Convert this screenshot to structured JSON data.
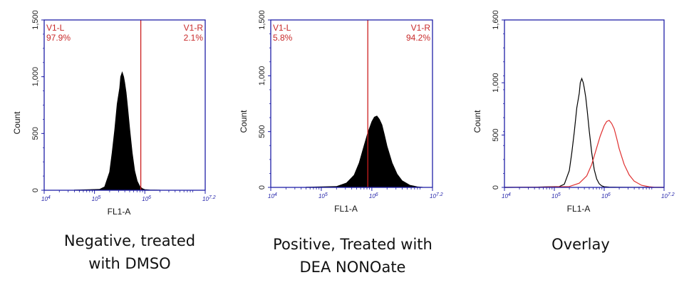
{
  "colors": {
    "frame": "#1f1fa8",
    "gate": "#cc1f1f",
    "gate_text": "#c82a2a",
    "histogram_fill": "#000000",
    "overlay_negative": "#000000",
    "overlay_positive": "#e03030"
  },
  "panels": [
    {
      "caption_lines": [
        "Negative, treated",
        "with DMSO"
      ],
      "gate_left": {
        "name": "V1-L",
        "percent": "97.9%"
      },
      "gate_right": {
        "name": "V1-R",
        "percent": "2.1%"
      }
    },
    {
      "caption_lines": [
        "Positive, Treated with",
        "DEA NONOate"
      ],
      "gate_left": {
        "name": "V1-L",
        "percent": "5.8%"
      },
      "gate_right": {
        "name": "V1-R",
        "percent": "94.2%"
      }
    },
    {
      "caption_lines": [
        "Overlay"
      ]
    }
  ],
  "chart_data": [
    {
      "type": "histogram",
      "style": "filled",
      "xlabel": "FL1-A",
      "ylabel": "Count",
      "x_scale": "log10",
      "xlim": [
        4,
        7.2
      ],
      "x_ticks": [
        {
          "value": 4,
          "label": "10^4"
        },
        {
          "value": 5,
          "label": "10^5"
        },
        {
          "value": 6,
          "label": "10^6"
        },
        {
          "value": 7.2,
          "label": "10^7.2"
        }
      ],
      "ylim": [
        0,
        1500
      ],
      "y_ticks": [
        {
          "value": 0,
          "label": "0"
        },
        {
          "value": 500,
          "label": "500"
        },
        {
          "value": 1000,
          "label": "1,000"
        },
        {
          "value": 1500,
          "label": "1,500"
        }
      ],
      "gate_boundary": 5.92,
      "gates": [
        {
          "name": "V1-L",
          "percent": 97.9
        },
        {
          "name": "V1-R",
          "percent": 2.1
        }
      ],
      "series": [
        {
          "x": [
            4.6,
            5.1,
            5.2,
            5.3,
            5.35,
            5.4,
            5.45,
            5.5,
            5.52,
            5.55,
            5.58,
            5.6,
            5.63,
            5.66,
            5.7,
            5.75,
            5.8,
            5.85,
            5.9,
            5.95,
            6.0,
            6.1,
            6.3
          ],
          "y": [
            2,
            8,
            30,
            160,
            330,
            530,
            760,
            900,
            1000,
            1040,
            1000,
            950,
            860,
            730,
            540,
            330,
            170,
            80,
            35,
            15,
            6,
            3,
            1
          ]
        }
      ]
    },
    {
      "type": "histogram",
      "style": "filled",
      "xlabel": "FL1-A",
      "ylabel": "Count",
      "x_scale": "log10",
      "xlim": [
        4,
        7.2
      ],
      "x_ticks": [
        {
          "value": 4,
          "label": "10^4"
        },
        {
          "value": 5,
          "label": "10^5"
        },
        {
          "value": 6,
          "label": "10^6"
        },
        {
          "value": 7.2,
          "label": "10^7.2"
        }
      ],
      "ylim": [
        0,
        1500
      ],
      "y_ticks": [
        {
          "value": 0,
          "label": "0"
        },
        {
          "value": 500,
          "label": "500"
        },
        {
          "value": 1000,
          "label": "1,000"
        },
        {
          "value": 1500,
          "label": "1,500"
        }
      ],
      "gate_boundary": 5.92,
      "gates": [
        {
          "name": "V1-L",
          "percent": 5.8
        },
        {
          "name": "V1-R",
          "percent": 94.2
        }
      ],
      "series": [
        {
          "x": [
            4.7,
            5.3,
            5.5,
            5.65,
            5.75,
            5.85,
            5.92,
            6.0,
            6.05,
            6.1,
            6.15,
            6.2,
            6.25,
            6.3,
            6.4,
            6.5,
            6.6,
            6.75,
            6.9,
            7.0
          ],
          "y": [
            2,
            8,
            40,
            110,
            220,
            380,
            490,
            590,
            630,
            640,
            610,
            560,
            470,
            370,
            220,
            120,
            60,
            20,
            6,
            2
          ]
        }
      ]
    },
    {
      "type": "line",
      "style": "overlay",
      "xlabel": "FL1-A",
      "ylabel": "Count",
      "x_scale": "log10",
      "xlim": [
        4,
        7.2
      ],
      "x_ticks": [
        {
          "value": 4,
          "label": "10^4"
        },
        {
          "value": 5,
          "label": "10^5"
        },
        {
          "value": 6,
          "label": "10^6"
        },
        {
          "value": 7.2,
          "label": "10^7.2"
        }
      ],
      "ylim": [
        0,
        1600
      ],
      "y_ticks": [
        {
          "value": 0,
          "label": "0"
        },
        {
          "value": 500,
          "label": "500"
        },
        {
          "value": 1000,
          "label": "1,000"
        },
        {
          "value": 1600,
          "label": "1,600"
        }
      ],
      "series": [
        {
          "color": "#000000",
          "x": [
            4.0,
            4.6,
            5.1,
            5.2,
            5.3,
            5.35,
            5.4,
            5.45,
            5.5,
            5.52,
            5.55,
            5.58,
            5.6,
            5.63,
            5.66,
            5.7,
            5.75,
            5.8,
            5.85,
            5.9,
            5.95,
            6.0,
            6.1,
            6.3,
            7.2
          ],
          "y": [
            0,
            2,
            8,
            30,
            160,
            330,
            530,
            760,
            900,
            1000,
            1040,
            1000,
            950,
            860,
            730,
            540,
            330,
            170,
            80,
            35,
            15,
            6,
            3,
            1,
            0
          ]
        },
        {
          "color": "#e03030",
          "x": [
            4.0,
            4.7,
            5.3,
            5.5,
            5.65,
            5.75,
            5.85,
            5.92,
            6.0,
            6.05,
            6.1,
            6.15,
            6.2,
            6.25,
            6.3,
            6.4,
            6.5,
            6.6,
            6.75,
            6.9,
            7.0,
            7.2
          ],
          "y": [
            0,
            2,
            8,
            40,
            110,
            220,
            380,
            490,
            590,
            630,
            640,
            610,
            560,
            470,
            370,
            220,
            120,
            60,
            20,
            6,
            2,
            0
          ]
        }
      ]
    }
  ]
}
